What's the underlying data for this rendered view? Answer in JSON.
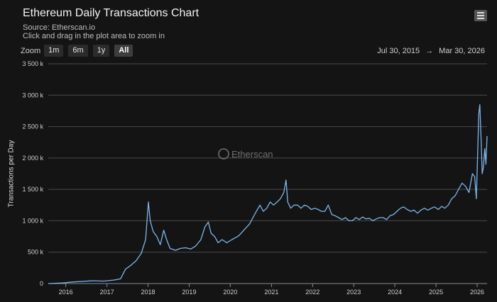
{
  "header": {
    "title": "Ethereum Daily Transactions Chart",
    "source": "Source: Etherscan.io",
    "hint": "Click and drag in the plot area to zoom in"
  },
  "zoom": {
    "label": "Zoom",
    "buttons": [
      "1m",
      "6m",
      "1y",
      "All"
    ],
    "active": "All"
  },
  "range": {
    "from": "Jul 30, 2015",
    "arrow": "→",
    "to": "Mar 30, 2026"
  },
  "watermark": "Etherscan",
  "chart_data": {
    "type": "line",
    "title": "Ethereum Daily Transactions Chart",
    "ylabel": "Transactions per Day",
    "ylim": [
      0,
      3500000
    ],
    "yticks": [
      0,
      500000,
      1000000,
      1500000,
      2000000,
      2500000,
      3000000,
      3500000
    ],
    "ytick_labels": [
      "0",
      "500 k",
      "1 000 k",
      "1 500 k",
      "2 000 k",
      "2 500 k",
      "3 000 k",
      "3 500 k"
    ],
    "xlim": [
      "2015-07-30",
      "2026-03-30"
    ],
    "xtick_labels": [
      "2016",
      "2017",
      "2018",
      "2019",
      "2020",
      "2021",
      "2022",
      "2023",
      "2024",
      "2025",
      "2026"
    ],
    "grid": "horizontal",
    "line_color": "#7cb5ec",
    "x": [
      "2015-07-30",
      "2015-12-01",
      "2016-03-01",
      "2016-06-01",
      "2016-09-01",
      "2016-12-01",
      "2017-03-01",
      "2017-05-01",
      "2017-06-15",
      "2017-08-01",
      "2017-09-15",
      "2017-11-01",
      "2017-12-10",
      "2018-01-04",
      "2018-01-20",
      "2018-02-15",
      "2018-03-20",
      "2018-04-20",
      "2018-05-20",
      "2018-06-15",
      "2018-07-15",
      "2018-09-01",
      "2018-10-15",
      "2018-12-01",
      "2019-01-15",
      "2019-03-01",
      "2019-04-15",
      "2019-05-20",
      "2019-06-20",
      "2019-07-15",
      "2019-08-15",
      "2019-09-15",
      "2019-10-20",
      "2019-12-01",
      "2020-01-15",
      "2020-02-15",
      "2020-03-15",
      "2020-04-15",
      "2020-05-15",
      "2020-06-20",
      "2020-07-20",
      "2020-08-20",
      "2020-09-20",
      "2020-10-20",
      "2020-11-20",
      "2020-12-20",
      "2021-01-20",
      "2021-02-20",
      "2021-03-20",
      "2021-04-20",
      "2021-05-10",
      "2021-05-25",
      "2021-06-20",
      "2021-07-20",
      "2021-08-20",
      "2021-09-20",
      "2021-10-20",
      "2021-11-20",
      "2021-12-20",
      "2022-01-20",
      "2022-02-20",
      "2022-03-20",
      "2022-04-20",
      "2022-05-20",
      "2022-06-20",
      "2022-07-20",
      "2022-08-20",
      "2022-09-20",
      "2022-10-20",
      "2022-11-20",
      "2022-12-20",
      "2023-01-20",
      "2023-02-20",
      "2023-03-20",
      "2023-04-20",
      "2023-05-20",
      "2023-06-20",
      "2023-07-20",
      "2023-08-20",
      "2023-09-20",
      "2023-10-20",
      "2023-11-20",
      "2023-12-20",
      "2024-01-20",
      "2024-02-20",
      "2024-03-20",
      "2024-04-20",
      "2024-05-20",
      "2024-06-20",
      "2024-07-20",
      "2024-08-20",
      "2024-09-20",
      "2024-10-20",
      "2024-11-20",
      "2024-12-20",
      "2025-01-20",
      "2025-02-20",
      "2025-03-20",
      "2025-04-20",
      "2025-05-20",
      "2025-06-20",
      "2025-07-20",
      "2025-08-20",
      "2025-09-20",
      "2025-10-20",
      "2025-11-20",
      "2025-12-10",
      "2025-12-25",
      "2026-01-05",
      "2026-01-15",
      "2026-01-25",
      "2026-02-05",
      "2026-02-15",
      "2026-02-25",
      "2026-03-10",
      "2026-03-20",
      "2026-03-30"
    ],
    "y": [
      0,
      10000,
      25000,
      35000,
      45000,
      40000,
      55000,
      75000,
      230000,
      290000,
      360000,
      480000,
      700000,
      1300000,
      1000000,
      830000,
      750000,
      620000,
      850000,
      700000,
      560000,
      530000,
      560000,
      570000,
      550000,
      600000,
      700000,
      900000,
      980000,
      800000,
      750000,
      650000,
      700000,
      650000,
      700000,
      730000,
      760000,
      820000,
      880000,
      950000,
      1050000,
      1150000,
      1250000,
      1150000,
      1200000,
      1300000,
      1250000,
      1300000,
      1350000,
      1450000,
      1650000,
      1300000,
      1200000,
      1250000,
      1250000,
      1200000,
      1250000,
      1230000,
      1180000,
      1200000,
      1180000,
      1150000,
      1150000,
      1250000,
      1100000,
      1080000,
      1050000,
      1020000,
      1050000,
      1000000,
      1000000,
      1050000,
      1020000,
      1060000,
      1030000,
      1040000,
      1000000,
      1030000,
      1050000,
      1050000,
      1020000,
      1080000,
      1100000,
      1150000,
      1200000,
      1220000,
      1180000,
      1150000,
      1170000,
      1120000,
      1170000,
      1200000,
      1170000,
      1200000,
      1220000,
      1180000,
      1230000,
      1200000,
      1250000,
      1350000,
      1400000,
      1500000,
      1600000,
      1550000,
      1450000,
      1750000,
      1700000,
      1350000,
      2050000,
      2700000,
      2850000,
      2300000,
      1750000,
      1850000,
      2150000,
      1900000,
      2350000
    ]
  }
}
